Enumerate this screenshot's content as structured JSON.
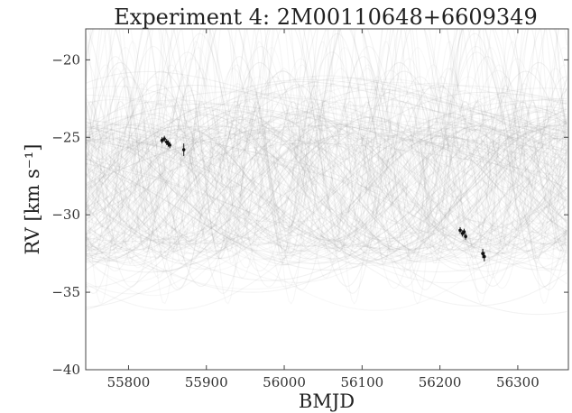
{
  "chart_data": {
    "type": "scatter",
    "title": "Experiment 4: 2M00110648+6609349",
    "xlabel": "BMJD",
    "ylabel": "RV [km s⁻¹]",
    "xlim": [
      55745,
      56365
    ],
    "ylim": [
      -40,
      -18
    ],
    "xticks": [
      55800,
      55900,
      56000,
      56100,
      56200,
      56300
    ],
    "yticks": [
      -20,
      -25,
      -30,
      -35,
      -40
    ],
    "grid": false,
    "legend": "none",
    "colors": {
      "data": "#111111",
      "samples": "#8a8a8a",
      "axes": "#444444"
    },
    "series": [
      {
        "x": [
          55843,
          55846,
          55849,
          55851,
          55853,
          55871,
          56226,
          56229,
          56231,
          56233,
          56255,
          56257
        ],
        "y": [
          -25.2,
          -25.1,
          -25.3,
          -25.4,
          -25.5,
          -25.8,
          -31.0,
          -31.2,
          -31.1,
          -31.4,
          -32.5,
          -32.7
        ],
        "yerr": [
          0.2,
          0.2,
          0.2,
          0.2,
          0.2,
          0.4,
          0.2,
          0.2,
          0.2,
          0.2,
          0.3,
          0.3
        ]
      }
    ]
  }
}
